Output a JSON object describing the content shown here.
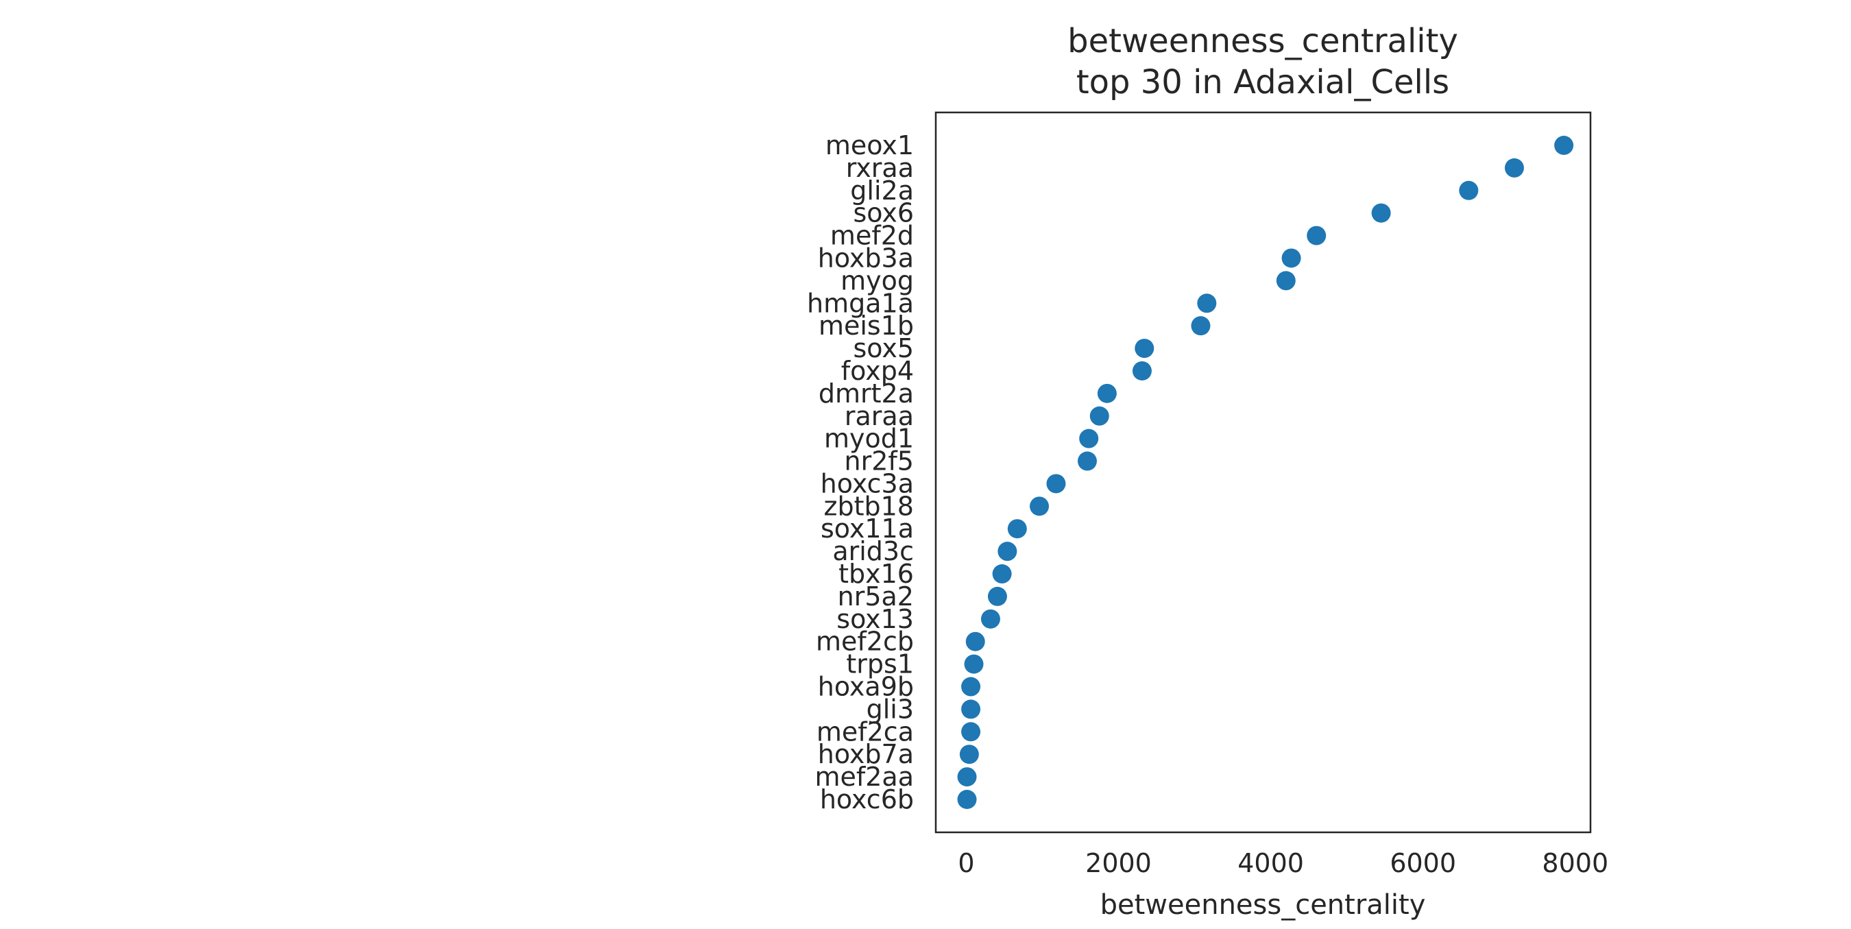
{
  "chart_data": {
    "type": "scatter",
    "title": "betweenness_centrality",
    "subtitle": "top 30 in Adaxial_Cells",
    "xlabel": "betweenness_centrality",
    "ylabel": "",
    "xlim": [
      -400,
      8200
    ],
    "xticks": [
      0,
      2000,
      4000,
      6000,
      8000
    ],
    "grid": false,
    "legend": "none",
    "marker_color": "#1f77b4",
    "categories": [
      "meox1",
      "rxraa",
      "gli2a",
      "sox6",
      "mef2d",
      "hoxb3a",
      "myog",
      "hmga1a",
      "meis1b",
      "sox5",
      "foxp4",
      "dmrt2a",
      "raraa",
      "myod1",
      "nr2f5",
      "hoxc3a",
      "zbtb18",
      "sox11a",
      "arid3c",
      "tbx16",
      "nr5a2",
      "sox13",
      "mef2cb",
      "trps1",
      "hoxa9b",
      "gli3",
      "mef2ca",
      "hoxb7a",
      "mef2aa",
      "hoxc6b"
    ],
    "values": [
      7850,
      7200,
      6600,
      5450,
      4600,
      4270,
      4200,
      3160,
      3080,
      2340,
      2310,
      1850,
      1750,
      1610,
      1590,
      1180,
      960,
      670,
      540,
      470,
      410,
      320,
      120,
      100,
      60,
      60,
      60,
      40,
      10,
      10
    ]
  }
}
